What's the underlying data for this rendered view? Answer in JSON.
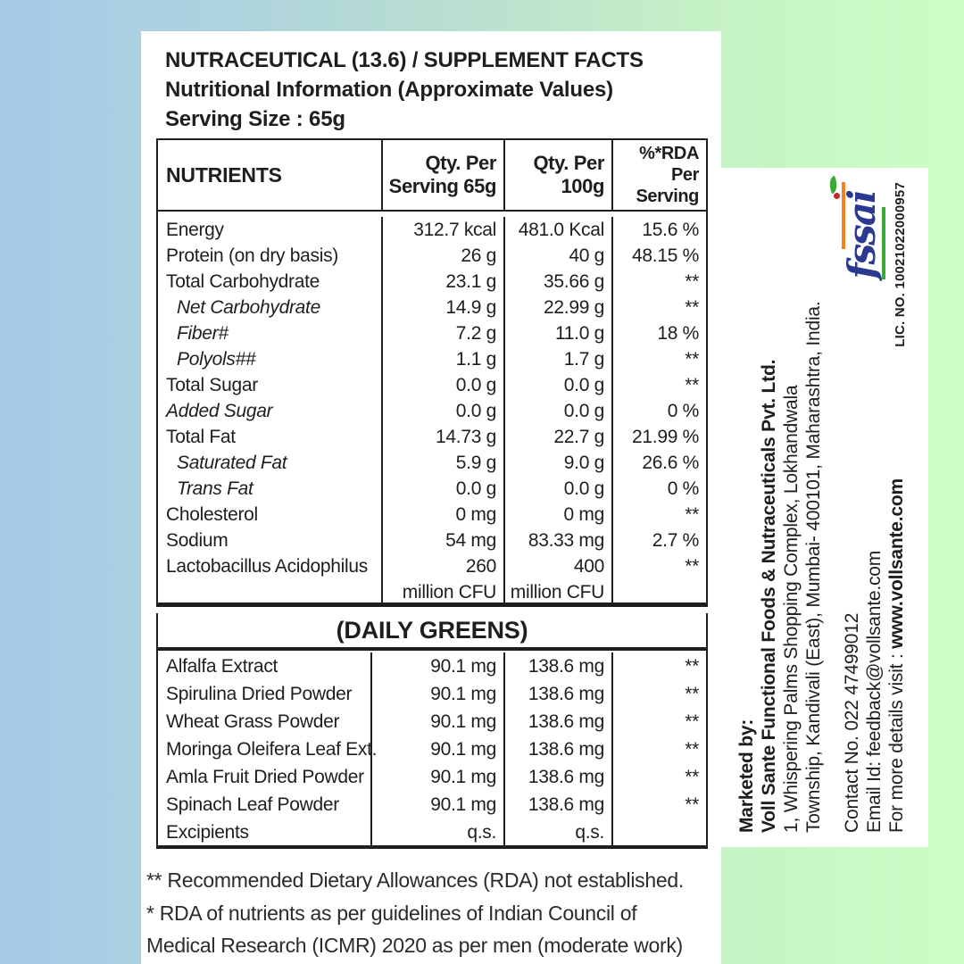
{
  "background": {
    "left_color": "#a7c9e7",
    "right_color": "#cdfec7"
  },
  "panel": {
    "title_line1": "NUTRACEUTICAL (13.6) / SUPPLEMENT FACTS",
    "title_line2": "Nutritional Information (Approximate Values)",
    "serving_size": "Serving Size : 65g"
  },
  "nutrients_table": {
    "header": {
      "nutrients": "NUTRIENTS",
      "qty_serving_l1": "Qty. Per",
      "qty_serving_l2": "Serving 65g",
      "qty_100_l1": "Qty. Per",
      "qty_100_l2": "100g",
      "rda_l1": "%*RDA",
      "rda_l2": "Per Serving"
    },
    "rows": [
      {
        "label": "Energy",
        "style": "plain",
        "serving": "312.7 kcal",
        "per100": "481.0 Kcal",
        "rda": "15.6 %"
      },
      {
        "label": "Protein (on dry basis)",
        "style": "plain",
        "serving": "26 g",
        "per100": "40 g",
        "rda": "48.15 %"
      },
      {
        "label": "Total Carbohydrate",
        "style": "plain",
        "serving": "23.1 g",
        "per100": "35.66 g",
        "rda": "**"
      },
      {
        "label": "Net Carbohydrate",
        "style": "italic-indent",
        "serving": "14.9 g",
        "per100": "22.99 g",
        "rda": "**"
      },
      {
        "label": "Fiber#",
        "style": "italic-indent",
        "serving": "7.2 g",
        "per100": "11.0 g",
        "rda": "18 %"
      },
      {
        "label": "Polyols##",
        "style": "italic-indent",
        "serving": "1.1 g",
        "per100": "1.7 g",
        "rda": "**"
      },
      {
        "label": "Total Sugar",
        "style": "plain",
        "serving": "0.0 g",
        "per100": "0.0 g",
        "rda": "**"
      },
      {
        "label": "Added Sugar",
        "style": "italic",
        "serving": "0.0 g",
        "per100": "0.0 g",
        "rda": "0 %"
      },
      {
        "label": "Total Fat",
        "style": "plain",
        "serving": "14.73 g",
        "per100": "22.7 g",
        "rda": "21.99 %"
      },
      {
        "label": "Saturated Fat",
        "style": "italic-indent",
        "serving": "5.9 g",
        "per100": "9.0 g",
        "rda": "26.6 %"
      },
      {
        "label": "Trans Fat",
        "style": "italic-indent",
        "serving": "0.0 g",
        "per100": "0.0 g",
        "rda": "0 %"
      },
      {
        "label": "Cholesterol",
        "style": "plain",
        "serving": "0 mg",
        "per100": "0 mg",
        "rda": "**"
      },
      {
        "label": "Sodium",
        "style": "plain",
        "serving": "54 mg",
        "per100": "83.33 mg",
        "rda": "2.7 %"
      },
      {
        "label": "Lactobacillus Acidophilus",
        "style": "plain",
        "serving": "260",
        "serving_line2": "million CFU",
        "per100": "400",
        "per100_line2": "million CFU",
        "rda": "**"
      }
    ]
  },
  "greens_section": {
    "title": "(DAILY GREENS)",
    "rows": [
      {
        "label": "Alfalfa Extract",
        "serving": "90.1 mg",
        "per100": "138.6 mg",
        "rda": "**"
      },
      {
        "label": "Spirulina Dried Powder",
        "serving": "90.1 mg",
        "per100": "138.6 mg",
        "rda": "**"
      },
      {
        "label": "Wheat Grass Powder",
        "serving": "90.1 mg",
        "per100": "138.6 mg",
        "rda": "**"
      },
      {
        "label": "Moringa Oleifera Leaf Ext.",
        "serving": "90.1 mg",
        "per100": "138.6 mg",
        "rda": "**"
      },
      {
        "label": "Amla Fruit Dried Powder",
        "serving": "90.1 mg",
        "per100": "138.6 mg",
        "rda": "**"
      },
      {
        "label": "Spinach Leaf Powder",
        "serving": "90.1 mg",
        "per100": "138.6 mg",
        "rda": "**"
      },
      {
        "label": "Excipients",
        "serving": "q.s.",
        "per100": "q.s.",
        "rda": ""
      }
    ]
  },
  "footnotes": [
    "** Recommended Dietary Allowances (RDA) not established.",
    "* RDA of nutrients as per guidelines of Indian Council of",
    "Medical Research (ICMR) 2020 as per men (moderate work)"
  ],
  "sidebar": {
    "marketed_by": "Marketed by:",
    "company": "Voll Sante Functional Foods & Nutraceuticals Pvt. Ltd.",
    "address_line1": "1, Whispering Palms Shopping Complex, Lokhandwala",
    "address_line2": "Township, Kandivali (East), Mumbai- 400101, Maharashtra, India.",
    "contact": "Contact No. 022 47499012",
    "email": "Email Id: feedback@vollsante.com",
    "website_prefix": "For more details visit : ",
    "website": "www.vollsante.com",
    "fssai_logo_text": "fssai",
    "fssai_license": "LIC. NO. 10021022000957",
    "fssai_colors": {
      "blue": "#2b3990",
      "orange": "#f5821f",
      "green": "#3aaa35",
      "berry": "#c1272d"
    }
  }
}
